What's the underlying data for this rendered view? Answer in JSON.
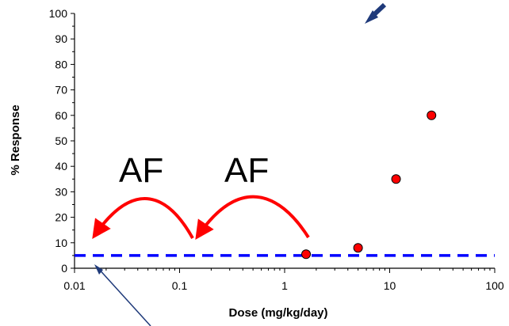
{
  "chart_data": {
    "type": "scatter",
    "title": "",
    "xlabel": "Dose (mg/kg/day)",
    "ylabel": "% Response",
    "x_scale": "log",
    "xlim": [
      0.01,
      100
    ],
    "ylim": [
      0,
      100
    ],
    "x_ticks": [
      0.01,
      0.1,
      1,
      10,
      100
    ],
    "x_tick_labels": [
      "0.01",
      "0.1",
      "1",
      "10",
      "100"
    ],
    "y_ticks": [
      0,
      10,
      20,
      30,
      40,
      50,
      60,
      70,
      80,
      90,
      100
    ],
    "y_tick_labels": [
      "0",
      "10",
      "20",
      "30",
      "40",
      "50",
      "60",
      "70",
      "80",
      "90",
      "100"
    ],
    "grid": false,
    "legend": "none",
    "series": [
      {
        "x": [
          1.6,
          5.0,
          11.5,
          25.0
        ],
        "y": [
          5.5,
          8,
          35,
          60
        ],
        "color": "#ff0000"
      }
    ],
    "reference_line": {
      "y": 5,
      "style": "dashed",
      "color": "#0000ff"
    },
    "annotations": {
      "af_labels": [
        "AF",
        "AF"
      ],
      "arrow_color": "#ff0000",
      "pointer_color": "#1f3a7a"
    }
  }
}
